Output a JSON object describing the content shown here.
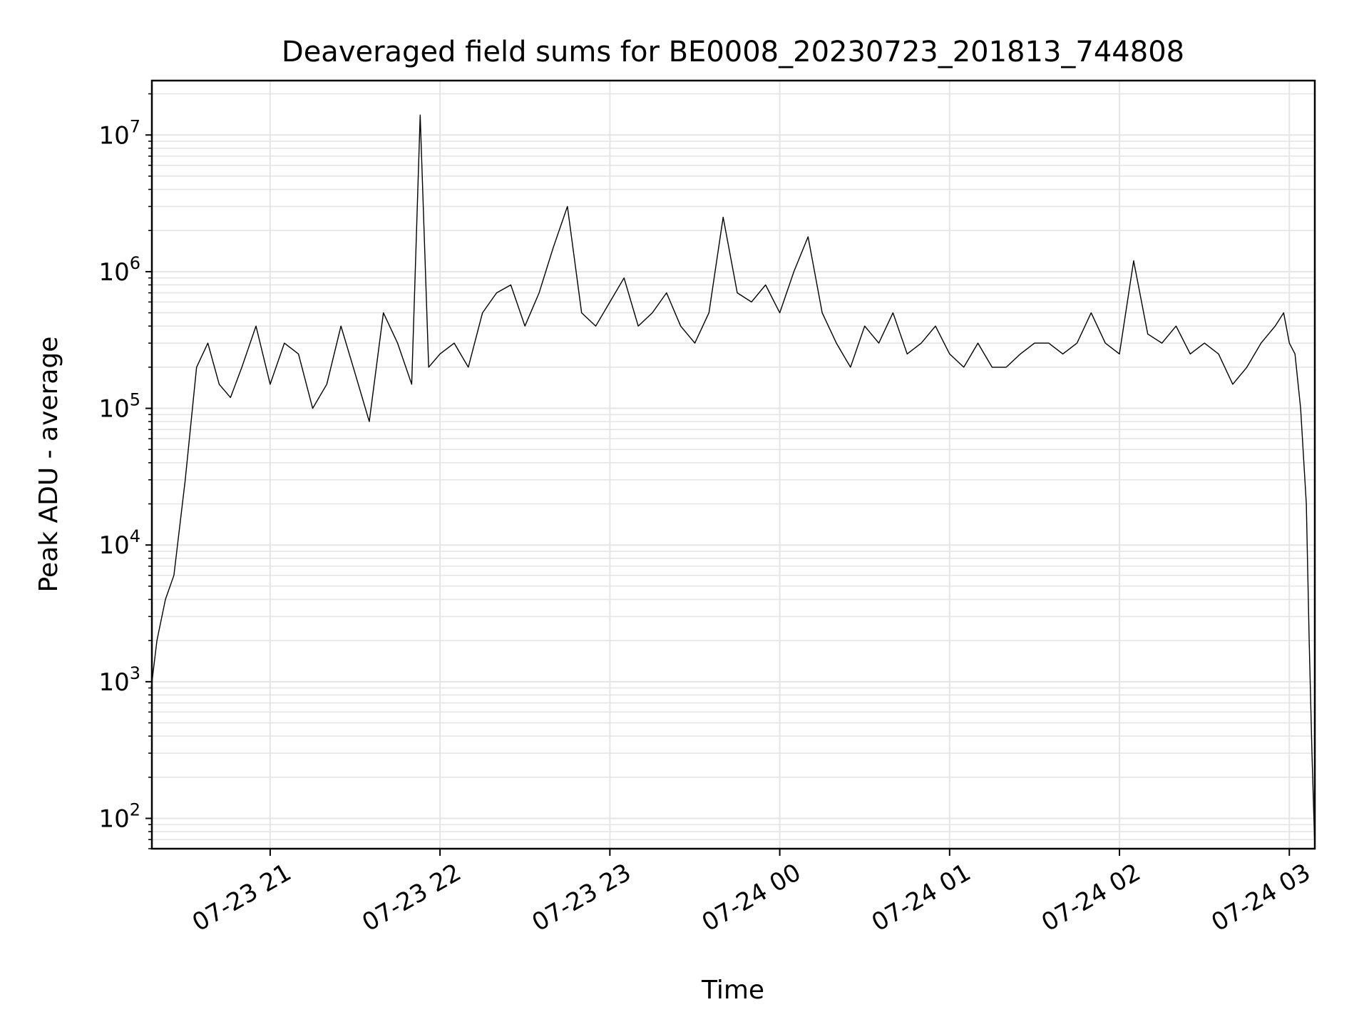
{
  "chart_data": {
    "type": "line",
    "title": "Deaveraged field sums for BE0008_20230723_201813_744808",
    "xlabel": "Time",
    "ylabel": "Peak ADU - average",
    "yscale": "log",
    "ylim": [
      60,
      25000000
    ],
    "xlim": [
      "2023-07-23 20:18:13",
      "2023-07-24 03:09:00"
    ],
    "x_tick_labels": [
      "07-23 21",
      "07-23 22",
      "07-23 23",
      "07-24 00",
      "07-24 01",
      "07-24 02",
      "07-24 03"
    ],
    "x_tick_values": [
      "2023-07-23 21:00",
      "2023-07-23 22:00",
      "2023-07-23 23:00",
      "2023-07-24 00:00",
      "2023-07-24 01:00",
      "2023-07-24 02:00",
      "2023-07-24 03:00"
    ],
    "y_tick_values": [
      100,
      1000,
      10000,
      100000,
      1000000,
      10000000
    ],
    "y_tick_exponents": [
      "2",
      "3",
      "4",
      "5",
      "6",
      "7"
    ],
    "y_tick_base": "10",
    "grid": "on (major and minor, y; major, x)",
    "line_color": "#000000",
    "grid_color": "#e5e5e5",
    "series": [
      {
        "x": [
          "2023-07-23 20:18",
          "2023-07-23 20:20",
          "2023-07-23 20:23",
          "2023-07-23 20:26",
          "2023-07-23 20:30",
          "2023-07-23 20:34",
          "2023-07-23 20:38",
          "2023-07-23 20:42",
          "2023-07-23 20:46",
          "2023-07-23 20:50",
          "2023-07-23 20:55",
          "2023-07-23 21:00",
          "2023-07-23 21:05",
          "2023-07-23 21:10",
          "2023-07-23 21:15",
          "2023-07-23 21:20",
          "2023-07-23 21:25",
          "2023-07-23 21:30",
          "2023-07-23 21:35",
          "2023-07-23 21:40",
          "2023-07-23 21:45",
          "2023-07-23 21:50",
          "2023-07-23 21:53",
          "2023-07-23 21:56",
          "2023-07-23 22:00",
          "2023-07-23 22:05",
          "2023-07-23 22:10",
          "2023-07-23 22:15",
          "2023-07-23 22:20",
          "2023-07-23 22:25",
          "2023-07-23 22:30",
          "2023-07-23 22:35",
          "2023-07-23 22:40",
          "2023-07-23 22:45",
          "2023-07-23 22:50",
          "2023-07-23 22:55",
          "2023-07-23 23:00",
          "2023-07-23 23:05",
          "2023-07-23 23:10",
          "2023-07-23 23:15",
          "2023-07-23 23:20",
          "2023-07-23 23:25",
          "2023-07-23 23:30",
          "2023-07-23 23:35",
          "2023-07-23 23:40",
          "2023-07-23 23:45",
          "2023-07-23 23:50",
          "2023-07-23 23:55",
          "2023-07-24 00:00",
          "2023-07-24 00:05",
          "2023-07-24 00:10",
          "2023-07-24 00:15",
          "2023-07-24 00:20",
          "2023-07-24 00:25",
          "2023-07-24 00:30",
          "2023-07-24 00:35",
          "2023-07-24 00:40",
          "2023-07-24 00:45",
          "2023-07-24 00:50",
          "2023-07-24 00:55",
          "2023-07-24 01:00",
          "2023-07-24 01:05",
          "2023-07-24 01:10",
          "2023-07-24 01:15",
          "2023-07-24 01:20",
          "2023-07-24 01:25",
          "2023-07-24 01:30",
          "2023-07-24 01:35",
          "2023-07-24 01:40",
          "2023-07-24 01:45",
          "2023-07-24 01:50",
          "2023-07-24 01:55",
          "2023-07-24 02:00",
          "2023-07-24 02:05",
          "2023-07-24 02:10",
          "2023-07-24 02:15",
          "2023-07-24 02:20",
          "2023-07-24 02:25",
          "2023-07-24 02:30",
          "2023-07-24 02:35",
          "2023-07-24 02:40",
          "2023-07-24 02:45",
          "2023-07-24 02:50",
          "2023-07-24 02:55",
          "2023-07-24 02:58",
          "2023-07-24 03:00",
          "2023-07-24 03:02",
          "2023-07-24 03:04",
          "2023-07-24 03:06",
          "2023-07-24 03:07",
          "2023-07-24 03:08",
          "2023-07-24 03:09"
        ],
        "y": [
          900,
          2000,
          4000,
          6000,
          30000,
          200000,
          300000,
          150000,
          120000,
          200000,
          400000,
          150000,
          300000,
          250000,
          100000,
          150000,
          400000,
          180000,
          80000,
          500000,
          300000,
          150000,
          14000000,
          200000,
          250000,
          300000,
          200000,
          500000,
          700000,
          800000,
          400000,
          700000,
          1500000,
          3000000,
          500000,
          400000,
          600000,
          900000,
          400000,
          500000,
          700000,
          400000,
          300000,
          500000,
          2500000,
          700000,
          600000,
          800000,
          500000,
          1000000,
          1800000,
          500000,
          300000,
          200000,
          400000,
          300000,
          500000,
          250000,
          300000,
          400000,
          250000,
          200000,
          300000,
          200000,
          200000,
          250000,
          300000,
          300000,
          250000,
          300000,
          500000,
          300000,
          250000,
          1200000,
          350000,
          300000,
          400000,
          250000,
          300000,
          250000,
          150000,
          200000,
          300000,
          400000,
          500000,
          300000,
          250000,
          100000,
          20000,
          2000,
          300,
          60
        ]
      }
    ]
  }
}
